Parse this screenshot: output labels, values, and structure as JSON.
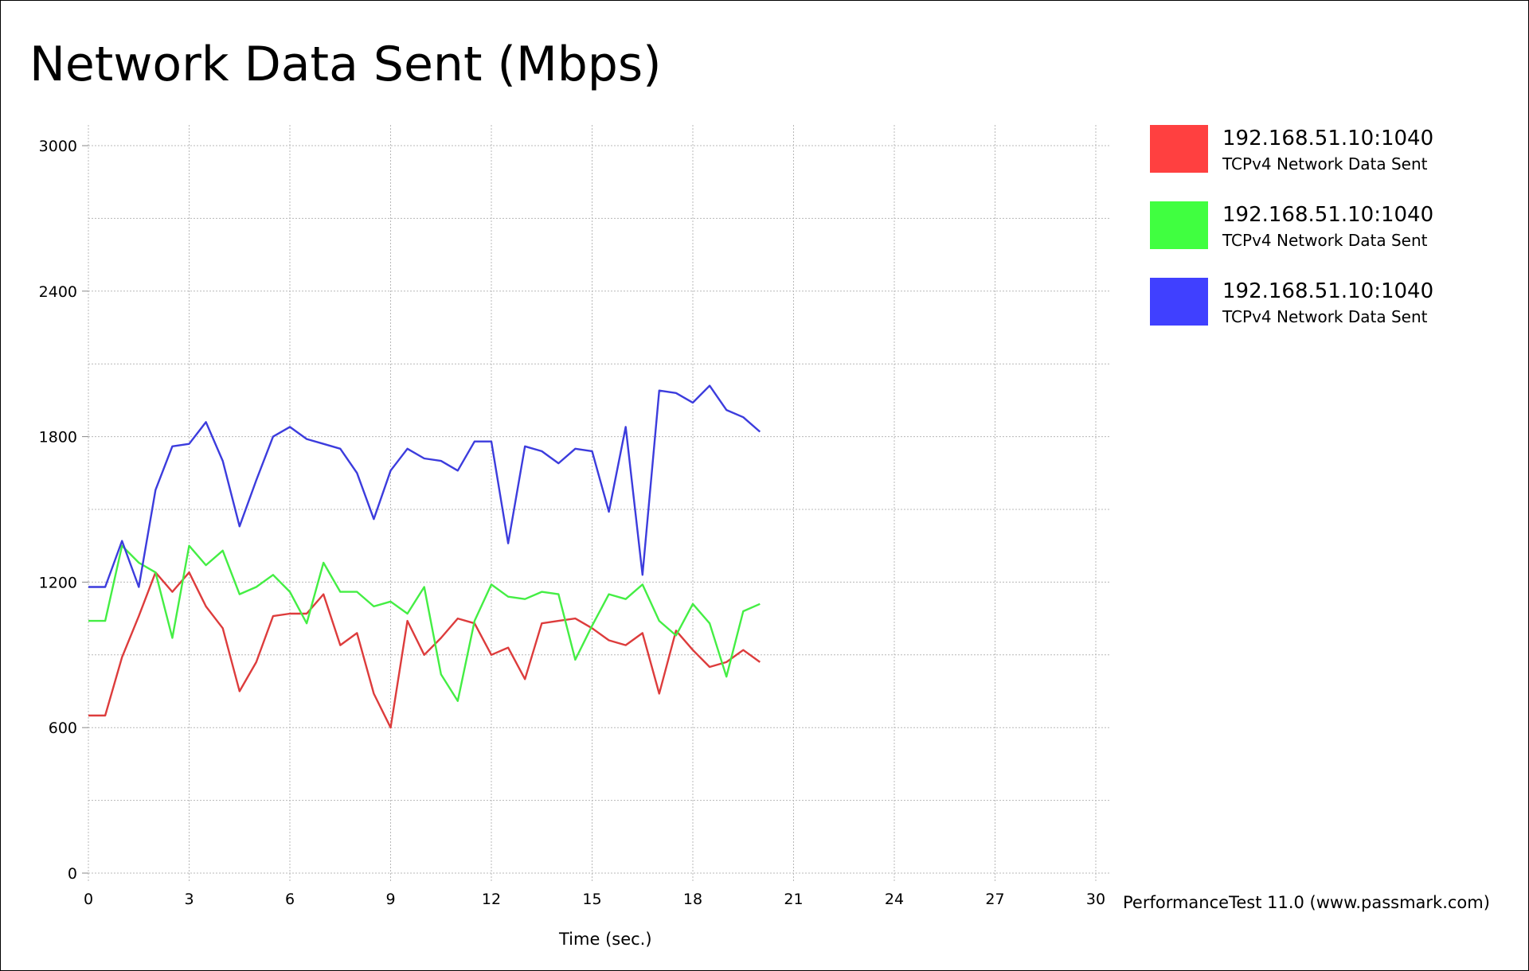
{
  "chart_data": {
    "type": "line",
    "title": "Network Data Sent (Mbps)",
    "xlabel": "Time (sec.)",
    "ylabel": "",
    "xlim": [
      0,
      30
    ],
    "ylim": [
      0,
      3000
    ],
    "x_ticks": [
      "0",
      "3",
      "6",
      "9",
      "12",
      "15",
      "18",
      "21",
      "24",
      "27",
      "30"
    ],
    "y_ticks": [
      "0",
      "600",
      "1200",
      "1800",
      "2400",
      "3000"
    ],
    "grid": true,
    "legend_position": "right",
    "x": [
      0,
      0.5,
      1,
      1.5,
      2,
      2.5,
      3,
      3.5,
      4,
      4.5,
      5,
      5.5,
      6,
      6.5,
      7,
      7.5,
      8,
      8.5,
      9,
      9.5,
      10,
      10.5,
      11,
      11.5,
      12,
      12.5,
      13,
      13.5,
      14,
      14.5,
      15,
      15.5,
      16,
      16.5,
      17,
      17.5,
      18,
      18.5,
      19,
      19.5,
      20
    ],
    "series": [
      {
        "name": "192.168.51.10:1040",
        "description": "TCPv4 Network Data Sent",
        "color": "#ff4040",
        "line_color": "#dd3c3c",
        "values": [
          650,
          650,
          890,
          1060,
          1240,
          1160,
          1240,
          1100,
          1010,
          750,
          870,
          1060,
          1070,
          1070,
          1150,
          940,
          990,
          740,
          600,
          1040,
          900,
          970,
          1050,
          1030,
          900,
          930,
          800,
          1030,
          1040,
          1050,
          1010,
          960,
          940,
          990,
          740,
          1000,
          920,
          850,
          870,
          920,
          870
        ]
      },
      {
        "name": "192.168.51.10:1040",
        "description": "TCPv4 Network Data Sent",
        "color": "#40ff40",
        "line_color": "#44ee44",
        "values": [
          1040,
          1040,
          1350,
          1280,
          1240,
          970,
          1350,
          1270,
          1330,
          1150,
          1180,
          1230,
          1160,
          1030,
          1280,
          1160,
          1160,
          1100,
          1120,
          1070,
          1180,
          820,
          710,
          1040,
          1190,
          1140,
          1130,
          1160,
          1150,
          880,
          1020,
          1150,
          1130,
          1190,
          1040,
          980,
          1110,
          1030,
          810,
          1080,
          1110
        ]
      },
      {
        "name": "192.168.51.10:1040",
        "description": "TCPv4 Network Data Sent",
        "color": "#4040ff",
        "line_color": "#3c3cdd",
        "values": [
          1180,
          1180,
          1370,
          1180,
          1580,
          1760,
          1770,
          1860,
          1700,
          1430,
          1620,
          1800,
          1840,
          1790,
          1770,
          1750,
          1650,
          1460,
          1660,
          1750,
          1710,
          1700,
          1660,
          1780,
          1780,
          1360,
          1760,
          1740,
          1690,
          1750,
          1740,
          1490,
          1840,
          1230,
          1990,
          1980,
          1940,
          2010,
          1910,
          1880,
          1820
        ]
      }
    ]
  },
  "footer": {
    "credit": "PerformanceTest 11.0 (www.passmark.com)"
  }
}
